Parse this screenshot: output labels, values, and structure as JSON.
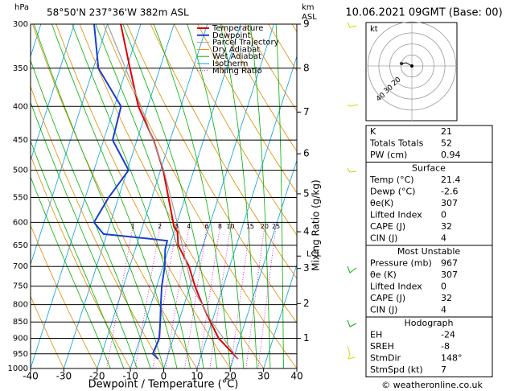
{
  "header": {
    "hpa": "hPa",
    "location": "58°50'N  237°36'W  382m ASL",
    "km": "km",
    "asl": "ASL",
    "date": "10.06.2021  09GMT  (Base: 00)"
  },
  "chart_data": {
    "type": "skewt",
    "xlabel": "Dewpoint / Temperature (°C)",
    "y2label": "Mixing Ratio (g/kg)",
    "xlim": [
      -40,
      40
    ],
    "xticks": [
      -40,
      -30,
      -20,
      -10,
      0,
      10,
      20,
      30,
      40
    ],
    "ylim": [
      1000,
      300
    ],
    "yticks": [
      300,
      350,
      400,
      450,
      500,
      550,
      600,
      650,
      700,
      750,
      800,
      850,
      900,
      950,
      1000
    ],
    "log_y": true,
    "km_ticks": [
      {
        "value": 300,
        "label": "9"
      },
      {
        "value": 350,
        "label": "8"
      },
      {
        "value": 408,
        "label": "7"
      },
      {
        "value": 472,
        "label": "6"
      },
      {
        "value": 543,
        "label": "5"
      },
      {
        "value": 620,
        "label": "4"
      },
      {
        "value": 705,
        "label": "3"
      },
      {
        "value": 797,
        "label": "2"
      },
      {
        "value": 900,
        "label": "1"
      }
    ],
    "lcl": {
      "value": 675,
      "label": "LCL"
    },
    "series": [
      {
        "name": "Temperature",
        "color": "#e00000",
        "pressure": [
          967,
          950,
          900,
          850,
          800,
          750,
          700,
          650,
          620,
          610,
          600,
          550,
          500,
          450,
          400,
          350,
          300
        ],
        "values": [
          21.4,
          19.5,
          13.6,
          9.6,
          5.5,
          1.5,
          -2.2,
          -7.5,
          -9,
          -10.5,
          -11.2,
          -15,
          -19.2,
          -25,
          -32.8,
          -39,
          -46
        ]
      },
      {
        "name": "Dewpoint",
        "color": "#1a3fd0",
        "pressure": [
          967,
          950,
          900,
          850,
          800,
          750,
          700,
          660,
          640,
          635,
          625,
          600,
          550,
          500,
          450,
          400,
          350,
          300
        ],
        "values": [
          -2.6,
          -4.7,
          -4.2,
          -5.5,
          -7,
          -8.5,
          -9.5,
          -11,
          -11.2,
          -17,
          -31,
          -35,
          -33,
          -29.6,
          -37.3,
          -38,
          -48.5,
          -54
        ]
      },
      {
        "name": "Parcel Trajectory",
        "color": "#a0a0a0",
        "pressure": [
          967,
          850,
          750,
          675,
          600,
          500,
          400,
          300
        ],
        "values": [
          21.4,
          10,
          0.5,
          -4.5,
          -10,
          -19,
          -32,
          -50
        ]
      }
    ],
    "dry_adiabat": {
      "name": "Dry Adiabat",
      "color": "#e08a00"
    },
    "wet_adiabat": {
      "name": "Wet Adiabat",
      "color": "#00b000"
    },
    "isotherm": {
      "name": "Isotherm",
      "color": "#00a0e0"
    },
    "mixing_ratio": {
      "name": "Mixing Ratio",
      "color": "#e000e0",
      "values": [
        1,
        2,
        3,
        4,
        6,
        8,
        10,
        15,
        20,
        25
      ]
    }
  },
  "hodograph": {
    "unit": "kt",
    "ring_labels": [
      20,
      30,
      40
    ]
  },
  "indices": [
    {
      "rows": [
        [
          "K",
          "21"
        ],
        [
          "Totals Totals",
          "52"
        ],
        [
          "PW (cm)",
          "0.94"
        ]
      ]
    },
    {
      "title": "Surface",
      "rows": [
        [
          "Temp (°C)",
          "21.4"
        ],
        [
          "Dewp (°C)",
          "-2.6"
        ],
        [
          "θe(K)",
          "307"
        ],
        [
          "Lifted Index",
          "0"
        ],
        [
          "CAPE (J)",
          "32"
        ],
        [
          "CIN (J)",
          "4"
        ]
      ]
    },
    {
      "title": "Most Unstable",
      "rows": [
        [
          "Pressure (mb)",
          "967"
        ],
        [
          "θe (K)",
          "307"
        ],
        [
          "Lifted Index",
          "0"
        ],
        [
          "CAPE (J)",
          "32"
        ],
        [
          "CIN (J)",
          "4"
        ]
      ]
    },
    {
      "title": "Hodograph",
      "rows": [
        [
          "EH",
          "-24"
        ],
        [
          "SREH",
          "-8"
        ],
        [
          "StmDir",
          "148°"
        ],
        [
          "StmSpd (kt)",
          "7"
        ]
      ]
    }
  ],
  "footer": "© weatheronline.co.uk"
}
